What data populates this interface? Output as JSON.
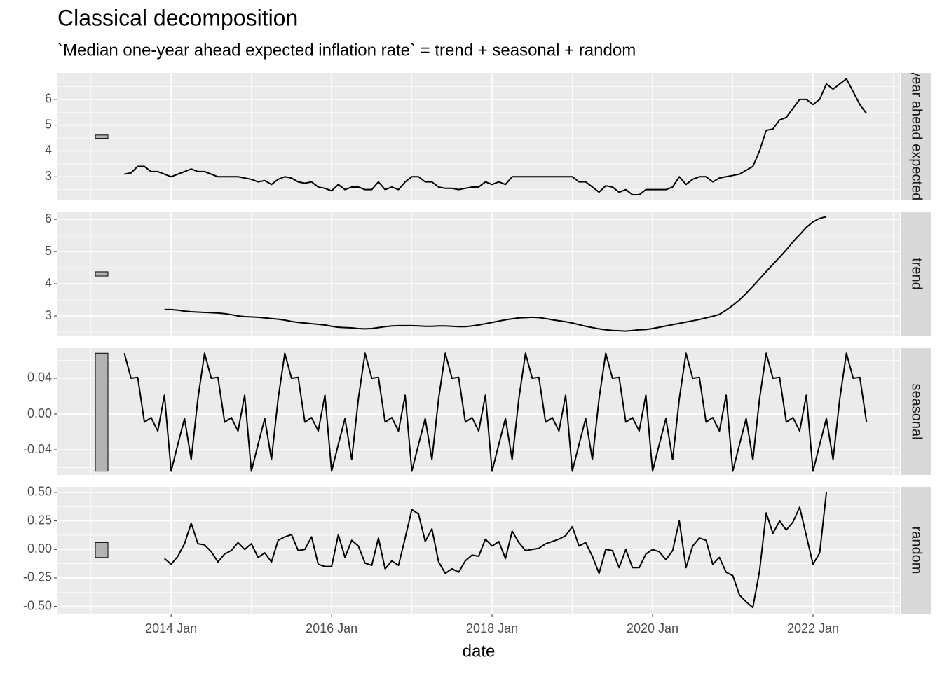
{
  "chart_data": {
    "type": "line",
    "title": "Classical decomposition",
    "subtitle": "`Median one-year ahead expected inflation rate` = trend + seasonal + random",
    "x_label": "date",
    "color": "#000000",
    "grid": true,
    "xlim": [
      "2012 Aug",
      "2023 Feb"
    ],
    "xticks": [
      "2014 Jan",
      "2016 Jan",
      "2018 Jan",
      "2020 Jan",
      "2022 Jan"
    ],
    "x": [
      "2013 Jun",
      "2013 Jul",
      "2013 Aug",
      "2013 Sep",
      "2013 Oct",
      "2013 Nov",
      "2013 Dec",
      "2014 Jan",
      "2014 Feb",
      "2014 Mar",
      "2014 Apr",
      "2014 May",
      "2014 Jun",
      "2014 Jul",
      "2014 Aug",
      "2014 Sep",
      "2014 Oct",
      "2014 Nov",
      "2014 Dec",
      "2015 Jan",
      "2015 Feb",
      "2015 Mar",
      "2015 Apr",
      "2015 May",
      "2015 Jun",
      "2015 Jul",
      "2015 Aug",
      "2015 Sep",
      "2015 Oct",
      "2015 Nov",
      "2015 Dec",
      "2016 Jan",
      "2016 Feb",
      "2016 Mar",
      "2016 Apr",
      "2016 May",
      "2016 Jun",
      "2016 Jul",
      "2016 Aug",
      "2016 Sep",
      "2016 Oct",
      "2016 Nov",
      "2016 Dec",
      "2017 Jan",
      "2017 Feb",
      "2017 Mar",
      "2017 Apr",
      "2017 May",
      "2017 Jun",
      "2017 Jul",
      "2017 Aug",
      "2017 Sep",
      "2017 Oct",
      "2017 Nov",
      "2017 Dec",
      "2018 Jan",
      "2018 Feb",
      "2018 Mar",
      "2018 Apr",
      "2018 May",
      "2018 Jun",
      "2018 Jul",
      "2018 Aug",
      "2018 Sep",
      "2018 Oct",
      "2018 Nov",
      "2018 Dec",
      "2019 Jan",
      "2019 Feb",
      "2019 Mar",
      "2019 Apr",
      "2019 May",
      "2019 Jun",
      "2019 Jul",
      "2019 Aug",
      "2019 Sep",
      "2019 Oct",
      "2019 Nov",
      "2019 Dec",
      "2020 Jan",
      "2020 Feb",
      "2020 Mar",
      "2020 Apr",
      "2020 May",
      "2020 Jun",
      "2020 Jul",
      "2020 Aug",
      "2020 Sep",
      "2020 Oct",
      "2020 Nov",
      "2020 Dec",
      "2021 Jan",
      "2021 Feb",
      "2021 Mar",
      "2021 Apr",
      "2021 May",
      "2021 Jun",
      "2021 Jul",
      "2021 Aug",
      "2021 Sep",
      "2021 Oct",
      "2021 Nov",
      "2021 Dec",
      "2022 Jan",
      "2022 Feb",
      "2022 Mar",
      "2022 Apr",
      "2022 May",
      "2022 Jun",
      "2022 Jul",
      "2022 Aug",
      "2022 Sep"
    ],
    "panels": [
      {
        "strip": "Median one-year ahead expected inflation rate",
        "ylim": [
          2.11,
          7.03
        ],
        "yticks": [
          3,
          4,
          5,
          6
        ],
        "values": [
          3.1,
          3.15,
          3.4,
          3.4,
          3.2,
          3.2,
          3.1,
          3.0,
          3.1,
          3.2,
          3.3,
          3.2,
          3.2,
          3.1,
          3.0,
          3.0,
          3.0,
          3.0,
          2.95,
          2.9,
          2.8,
          2.85,
          2.7,
          2.9,
          3.0,
          2.95,
          2.8,
          2.75,
          2.8,
          2.6,
          2.55,
          2.45,
          2.7,
          2.5,
          2.6,
          2.6,
          2.5,
          2.5,
          2.8,
          2.5,
          2.6,
          2.5,
          2.8,
          3.0,
          3.0,
          2.8,
          2.8,
          2.6,
          2.55,
          2.55,
          2.5,
          2.55,
          2.6,
          2.6,
          2.8,
          2.7,
          2.8,
          2.7,
          3.0,
          3.0,
          3.0,
          3.0,
          3.0,
          3.0,
          3.0,
          3.0,
          3.0,
          3.0,
          2.8,
          2.8,
          2.6,
          2.4,
          2.65,
          2.6,
          2.4,
          2.5,
          2.3,
          2.3,
          2.5,
          2.5,
          2.5,
          2.5,
          2.6,
          3.0,
          2.7,
          2.9,
          3.0,
          3.0,
          2.8,
          2.95,
          3.0,
          3.05,
          3.1,
          3.25,
          3.4,
          4.0,
          4.8,
          4.85,
          5.2,
          5.3,
          5.65,
          6.0,
          6.0,
          5.8,
          6.0,
          6.6,
          6.4,
          6.6,
          6.8,
          6.3,
          5.8,
          5.45
        ]
      },
      {
        "strip": "trend",
        "ylim": [
          2.37,
          6.24
        ],
        "yticks": [
          3,
          4,
          5,
          6
        ],
        "values": [
          null,
          null,
          null,
          null,
          null,
          null,
          3.2,
          3.2,
          3.18,
          3.15,
          3.13,
          3.12,
          3.11,
          3.1,
          3.09,
          3.07,
          3.04,
          3.0,
          2.98,
          2.97,
          2.96,
          2.94,
          2.92,
          2.9,
          2.87,
          2.83,
          2.8,
          2.78,
          2.76,
          2.74,
          2.72,
          2.68,
          2.65,
          2.64,
          2.63,
          2.61,
          2.6,
          2.61,
          2.64,
          2.67,
          2.69,
          2.7,
          2.7,
          2.7,
          2.69,
          2.68,
          2.68,
          2.69,
          2.69,
          2.68,
          2.67,
          2.67,
          2.69,
          2.72,
          2.76,
          2.8,
          2.84,
          2.88,
          2.91,
          2.94,
          2.95,
          2.96,
          2.95,
          2.92,
          2.88,
          2.85,
          2.82,
          2.78,
          2.73,
          2.68,
          2.64,
          2.6,
          2.57,
          2.55,
          2.54,
          2.53,
          2.55,
          2.57,
          2.58,
          2.61,
          2.65,
          2.69,
          2.73,
          2.77,
          2.81,
          2.85,
          2.89,
          2.94,
          2.99,
          3.05,
          3.18,
          3.33,
          3.5,
          3.7,
          3.92,
          4.15,
          4.38,
          4.6,
          4.82,
          5.05,
          5.3,
          5.52,
          5.75,
          5.92,
          6.03,
          6.08,
          null,
          null,
          null,
          null,
          null,
          null
        ]
      },
      {
        "strip": "seasonal",
        "ylim": [
          -0.0682,
          0.0737
        ],
        "yticks": [
          -0.04,
          {
            "value": 0,
            "label": "0.00"
          },
          0.04
        ],
        "values": [
          0.068,
          0.04,
          0.041,
          -0.009,
          -0.004,
          -0.019,
          0.021,
          -0.064,
          -0.034,
          -0.005,
          -0.051,
          0.017,
          0.068,
          0.04,
          0.041,
          -0.009,
          -0.004,
          -0.019,
          0.021,
          -0.064,
          -0.034,
          -0.005,
          -0.051,
          0.017,
          0.068,
          0.04,
          0.041,
          -0.009,
          -0.004,
          -0.019,
          0.021,
          -0.064,
          -0.034,
          -0.005,
          -0.051,
          0.017,
          0.068,
          0.04,
          0.041,
          -0.009,
          -0.004,
          -0.019,
          0.021,
          -0.064,
          -0.034,
          -0.005,
          -0.051,
          0.017,
          0.068,
          0.04,
          0.041,
          -0.009,
          -0.004,
          -0.019,
          0.021,
          -0.064,
          -0.034,
          -0.005,
          -0.051,
          0.017,
          0.068,
          0.04,
          0.041,
          -0.009,
          -0.004,
          -0.019,
          0.021,
          -0.064,
          -0.034,
          -0.005,
          -0.051,
          0.017,
          0.068,
          0.04,
          0.041,
          -0.009,
          -0.004,
          -0.019,
          0.021,
          -0.064,
          -0.034,
          -0.005,
          -0.051,
          0.017,
          0.068,
          0.04,
          0.041,
          -0.009,
          -0.004,
          -0.019,
          0.021,
          -0.064,
          -0.034,
          -0.005,
          -0.051,
          0.017,
          0.068,
          0.04,
          0.041,
          -0.009,
          -0.004,
          -0.019,
          0.021,
          -0.064,
          -0.034,
          -0.005,
          -0.051,
          0.017,
          0.068,
          0.04,
          0.041,
          -0.009
        ]
      },
      {
        "strip": "random",
        "ylim": [
          -0.564,
          0.549
        ],
        "yticks": [
          {
            "value": -0.5,
            "label": "-0.50"
          },
          -0.25,
          {
            "value": 0,
            "label": "0.00"
          },
          0.25,
          {
            "value": 0.5,
            "label": "0.50"
          }
        ],
        "values": [
          null,
          null,
          null,
          null,
          null,
          null,
          -0.08,
          -0.13,
          -0.06,
          0.05,
          0.23,
          0.05,
          0.04,
          -0.02,
          -0.11,
          -0.04,
          -0.01,
          0.06,
          0.0,
          0.05,
          -0.07,
          -0.03,
          -0.11,
          0.08,
          0.11,
          0.13,
          -0.01,
          0.0,
          0.11,
          -0.13,
          -0.15,
          -0.15,
          0.13,
          -0.07,
          0.08,
          0.03,
          -0.12,
          -0.14,
          0.1,
          -0.17,
          -0.1,
          -0.14,
          0.1,
          0.35,
          0.31,
          0.07,
          0.18,
          -0.11,
          -0.21,
          -0.17,
          -0.2,
          -0.1,
          -0.05,
          -0.06,
          0.09,
          0.03,
          0.07,
          -0.08,
          0.16,
          0.06,
          -0.01,
          0.0,
          0.01,
          0.05,
          0.07,
          0.09,
          0.12,
          0.2,
          0.03,
          0.06,
          -0.06,
          -0.21,
          0.0,
          -0.01,
          -0.16,
          0.0,
          -0.16,
          -0.16,
          -0.04,
          0.0,
          -0.02,
          -0.09,
          -0.01,
          0.25,
          -0.16,
          0.03,
          0.1,
          0.08,
          -0.13,
          -0.07,
          -0.2,
          -0.23,
          -0.4,
          -0.46,
          -0.51,
          -0.19,
          0.32,
          0.14,
          0.25,
          0.17,
          0.24,
          0.37,
          0.12,
          -0.13,
          -0.03,
          0.5,
          null,
          null,
          null,
          null,
          null,
          null
        ]
      }
    ]
  }
}
